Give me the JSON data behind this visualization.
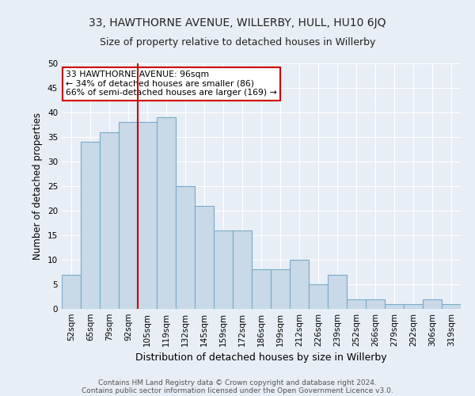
{
  "title1": "33, HAWTHORNE AVENUE, WILLERBY, HULL, HU10 6JQ",
  "title2": "Size of property relative to detached houses in Willerby",
  "xlabel": "Distribution of detached houses by size in Willerby",
  "ylabel": "Number of detached properties",
  "categories": [
    "52sqm",
    "65sqm",
    "79sqm",
    "92sqm",
    "105sqm",
    "119sqm",
    "132sqm",
    "145sqm",
    "159sqm",
    "172sqm",
    "186sqm",
    "199sqm",
    "212sqm",
    "226sqm",
    "239sqm",
    "252sqm",
    "266sqm",
    "279sqm",
    "292sqm",
    "306sqm",
    "319sqm"
  ],
  "values": [
    7,
    34,
    36,
    38,
    38,
    39,
    25,
    21,
    16,
    16,
    8,
    8,
    10,
    5,
    7,
    2,
    2,
    1,
    1,
    2,
    1
  ],
  "bar_color": "#c9d9e8",
  "bar_edge_color": "#7aaac8",
  "property_line_x": 3.5,
  "property_line_color": "#cc0000",
  "ylim": [
    0,
    50
  ],
  "yticks": [
    0,
    5,
    10,
    15,
    20,
    25,
    30,
    35,
    40,
    45,
    50
  ],
  "annotation_line1": "33 HAWTHORNE AVENUE: 96sqm",
  "annotation_line2": "← 34% of detached houses are smaller (86)",
  "annotation_line3": "66% of semi-detached houses are larger (169) →",
  "annotation_box_color": "white",
  "annotation_box_edge": "#cc0000",
  "footer1": "Contains HM Land Registry data © Crown copyright and database right 2024.",
  "footer2": "Contains public sector information licensed under the Open Government Licence v3.0.",
  "bg_color": "#e8eef5",
  "grid_color": "#ffffff",
  "title1_fontsize": 10,
  "title2_fontsize": 9,
  "ylabel_fontsize": 8.5,
  "xlabel_fontsize": 9,
  "tick_fontsize": 7.5,
  "footer_fontsize": 6.5
}
